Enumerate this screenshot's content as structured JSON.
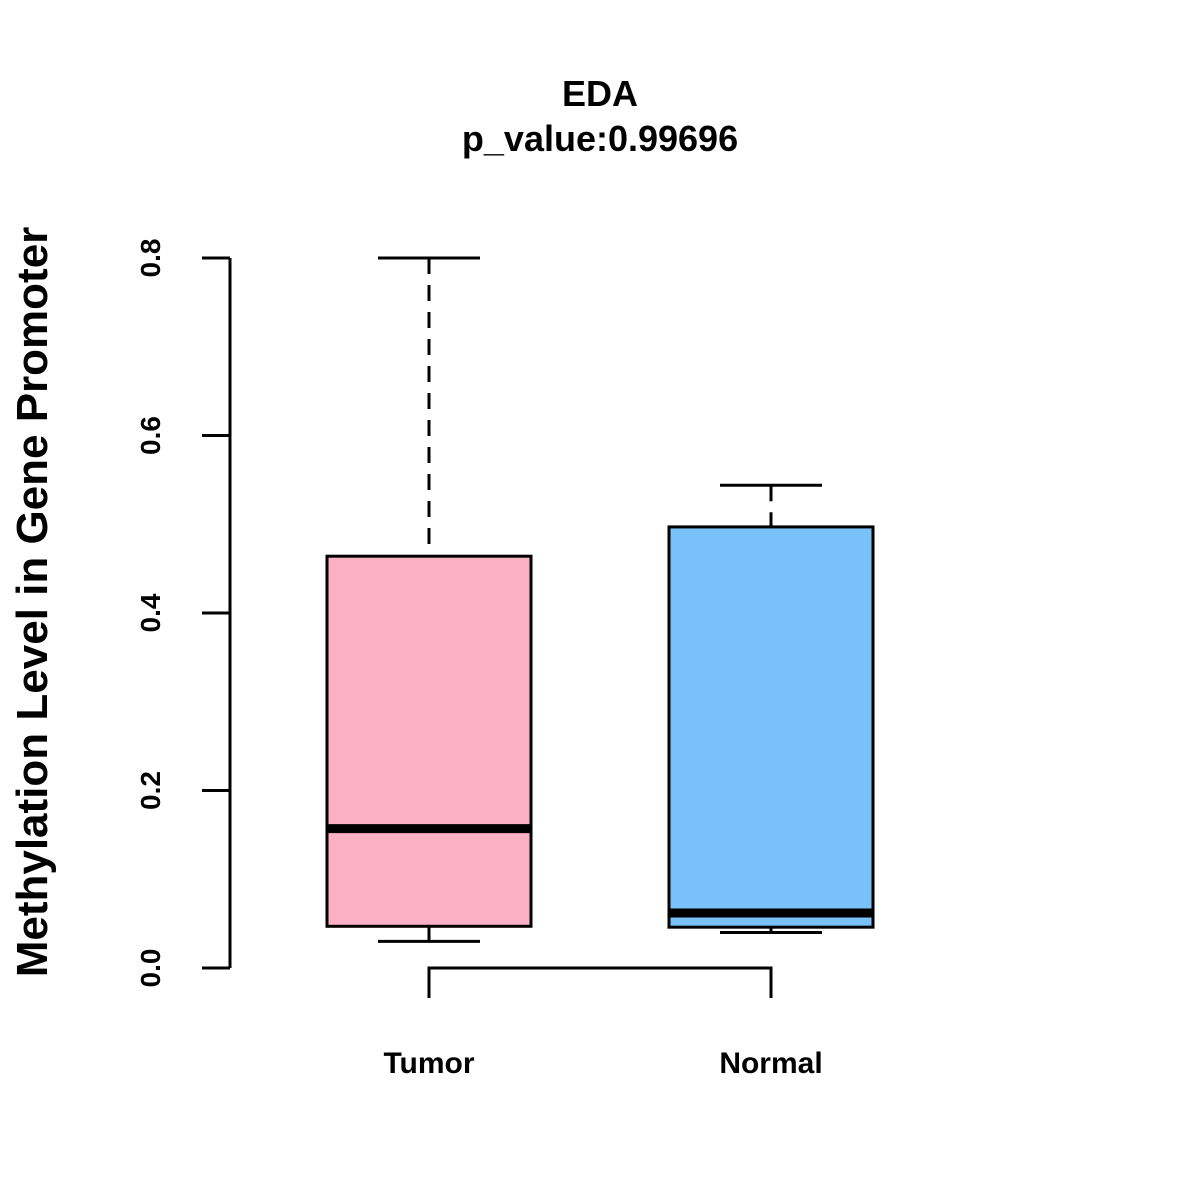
{
  "chart_data": {
    "type": "boxplot",
    "title": "EDA",
    "subtitle": "p_value:0.99696",
    "xlabel": "",
    "ylabel": "Methylation Level in Gene Promoter",
    "ylim": [
      0,
      0.8
    ],
    "yticks": [
      0.0,
      0.2,
      0.4,
      0.6,
      0.8
    ],
    "ytick_labels": [
      "0.0",
      "0.2",
      "0.4",
      "0.6",
      "0.8"
    ],
    "grid": false,
    "series": [
      {
        "name": "Tumor",
        "color": "#FBB1C3",
        "min": 0.03,
        "q1": 0.047,
        "median": 0.157,
        "q3": 0.464,
        "max": 0.8
      },
      {
        "name": "Normal",
        "color": "#78C1F9",
        "min": 0.04,
        "q1": 0.046,
        "median": 0.062,
        "q3": 0.497,
        "max": 0.544
      }
    ],
    "annotations": [
      {
        "type": "bracket",
        "from": "Tumor",
        "to": "Normal"
      }
    ]
  }
}
